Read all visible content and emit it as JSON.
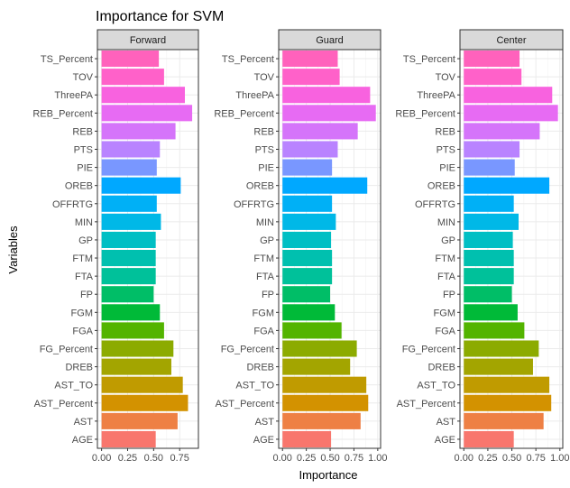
{
  "chart_data": {
    "type": "bar",
    "orientation": "horizontal",
    "title": "Importance for SVM",
    "xlabel": "Importance",
    "ylabel": "Variables",
    "legend": "none",
    "grid": true,
    "categories": [
      "TS_Percent",
      "TOV",
      "ThreePA",
      "REB_Percent",
      "REB",
      "PTS",
      "PIE",
      "OREB",
      "OFFRTG",
      "MIN",
      "GP",
      "FTM",
      "FTA",
      "FP",
      "FGM",
      "FGA",
      "FG_Percent",
      "DREB",
      "AST_TO",
      "AST_Percent",
      "AST",
      "AGE"
    ],
    "colors": [
      "#FF62BC",
      "#FF61C9",
      "#F862DF",
      "#E76BF3",
      "#D574FA",
      "#B983FF",
      "#7997FF",
      "#00A8FF",
      "#00B0F6",
      "#00B8E7",
      "#00BFC4",
      "#00C0AF",
      "#00C19A",
      "#00BE67",
      "#00BA38",
      "#53B400",
      "#8CAB00",
      "#A3A500",
      "#C09B00",
      "#D39200",
      "#EE8044",
      "#F8766D"
    ],
    "panels": [
      {
        "name": "Forward",
        "xlim": [
          -0.04,
          0.93
        ],
        "xticks": [
          0,
          0.25,
          0.5,
          0.75
        ],
        "xtick_labels": [
          "0.00",
          "0.25",
          "0.50",
          "0.75"
        ],
        "values": [
          0.55,
          0.6,
          0.8,
          0.87,
          0.71,
          0.56,
          0.53,
          0.76,
          0.53,
          0.57,
          0.52,
          0.52,
          0.52,
          0.5,
          0.56,
          0.6,
          0.69,
          0.67,
          0.78,
          0.83,
          0.73,
          0.52
        ]
      },
      {
        "name": "Guard",
        "xlim": [
          -0.04,
          1.03
        ],
        "xticks": [
          0,
          0.25,
          0.5,
          0.75,
          1.0
        ],
        "xtick_labels": [
          "0.00",
          "0.25",
          "0.50",
          "0.75",
          "1.00"
        ],
        "values": [
          0.58,
          0.6,
          0.92,
          0.98,
          0.79,
          0.58,
          0.52,
          0.89,
          0.52,
          0.56,
          0.51,
          0.52,
          0.52,
          0.5,
          0.55,
          0.62,
          0.78,
          0.71,
          0.88,
          0.9,
          0.82,
          0.51
        ]
      },
      {
        "name": "Center",
        "xlim": [
          -0.04,
          1.03
        ],
        "xticks": [
          0,
          0.25,
          0.5,
          0.75,
          1.0
        ],
        "xtick_labels": [
          "0.00",
          "0.25",
          "0.50",
          "0.75",
          "1.00"
        ],
        "values": [
          0.58,
          0.6,
          0.92,
          0.98,
          0.79,
          0.58,
          0.53,
          0.89,
          0.52,
          0.57,
          0.51,
          0.52,
          0.52,
          0.5,
          0.56,
          0.63,
          0.78,
          0.72,
          0.89,
          0.91,
          0.83,
          0.52
        ]
      }
    ]
  }
}
